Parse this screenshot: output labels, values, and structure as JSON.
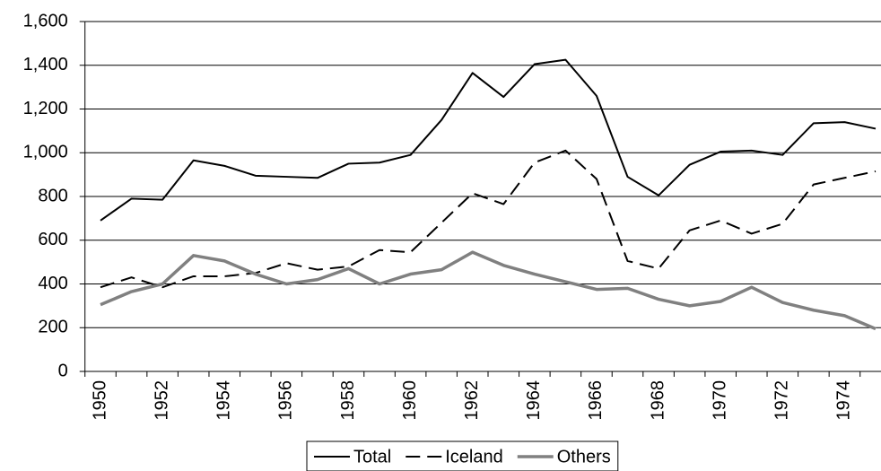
{
  "chart_data": {
    "type": "line",
    "categories": [
      "1950",
      null,
      "1952",
      null,
      "1954",
      null,
      "1956",
      null,
      "1958",
      null,
      "1960",
      null,
      "1962",
      null,
      "1964",
      null,
      "1966",
      null,
      "1968",
      null,
      "1970",
      null,
      "1972",
      null,
      "1974",
      null
    ],
    "series": [
      {
        "name": "Total",
        "color": "#000000",
        "dash": "solid",
        "values": [
          690,
          790,
          785,
          965,
          940,
          895,
          890,
          885,
          950,
          955,
          990,
          1150,
          1365,
          1255,
          1405,
          1425,
          1260,
          890,
          805,
          945,
          1005,
          1010,
          990,
          1135,
          1140,
          1110
        ]
      },
      {
        "name": "Iceland",
        "color": "#000000",
        "dash": "dashed",
        "values": [
          385,
          430,
          385,
          435,
          435,
          450,
          495,
          465,
          480,
          555,
          545,
          680,
          815,
          765,
          955,
          1010,
          880,
          505,
          470,
          645,
          690,
          630,
          675,
          855,
          885,
          915
        ]
      },
      {
        "name": "Others",
        "color": "#808080",
        "dash": "solid",
        "values": [
          305,
          365,
          400,
          530,
          505,
          445,
          400,
          420,
          470,
          400,
          445,
          465,
          545,
          485,
          445,
          410,
          375,
          380,
          330,
          300,
          320,
          385,
          315,
          280,
          255,
          195
        ]
      }
    ],
    "ylim": [
      0,
      1600
    ],
    "yticks": [
      0,
      200,
      400,
      600,
      800,
      {
        "value": 1000,
        "label": "1,000"
      },
      {
        "value": 1200,
        "label": "1,200"
      },
      {
        "value": 1400,
        "label": "1,400"
      },
      {
        "value": 1600,
        "label": "1,600"
      }
    ],
    "grid": true,
    "legend": "bottom"
  }
}
